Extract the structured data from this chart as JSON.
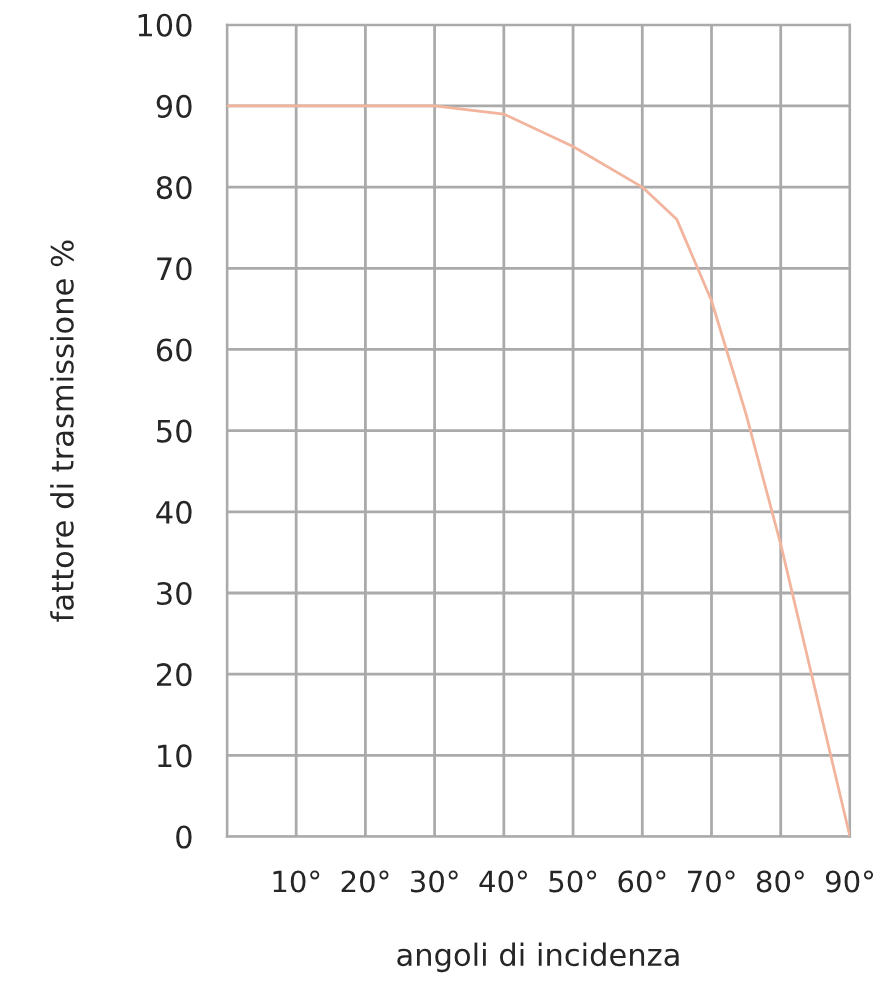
{
  "chart_data": {
    "type": "line",
    "xlabel": "angoli di incidenza",
    "ylabel": "fattore di trasmissione %",
    "x": [
      0,
      30,
      40,
      50,
      60,
      65,
      70,
      75,
      80,
      85,
      90
    ],
    "series": [
      {
        "color": "#f2b49c",
        "values": [
          90,
          90,
          89,
          85,
          80,
          76,
          66,
          52,
          36,
          18,
          0
        ]
      }
    ],
    "xlim": [
      0,
      90
    ],
    "xticks": [
      {
        "value": 0,
        "label": null
      },
      {
        "value": 10,
        "label": "10°"
      },
      {
        "value": 20,
        "label": "20°"
      },
      {
        "value": 30,
        "label": "30°"
      },
      {
        "value": 40,
        "label": "40°"
      },
      {
        "value": 50,
        "label": "50°"
      },
      {
        "value": 60,
        "label": "60°"
      },
      {
        "value": 70,
        "label": "70°"
      },
      {
        "value": 80,
        "label": "80°"
      },
      {
        "value": 90,
        "label": "90°"
      }
    ],
    "ylim": [
      0,
      100
    ],
    "yticks": [
      0,
      10,
      20,
      30,
      40,
      50,
      60,
      70,
      80,
      90,
      100
    ],
    "grid": true,
    "marker": "none",
    "line_style": "solid"
  }
}
